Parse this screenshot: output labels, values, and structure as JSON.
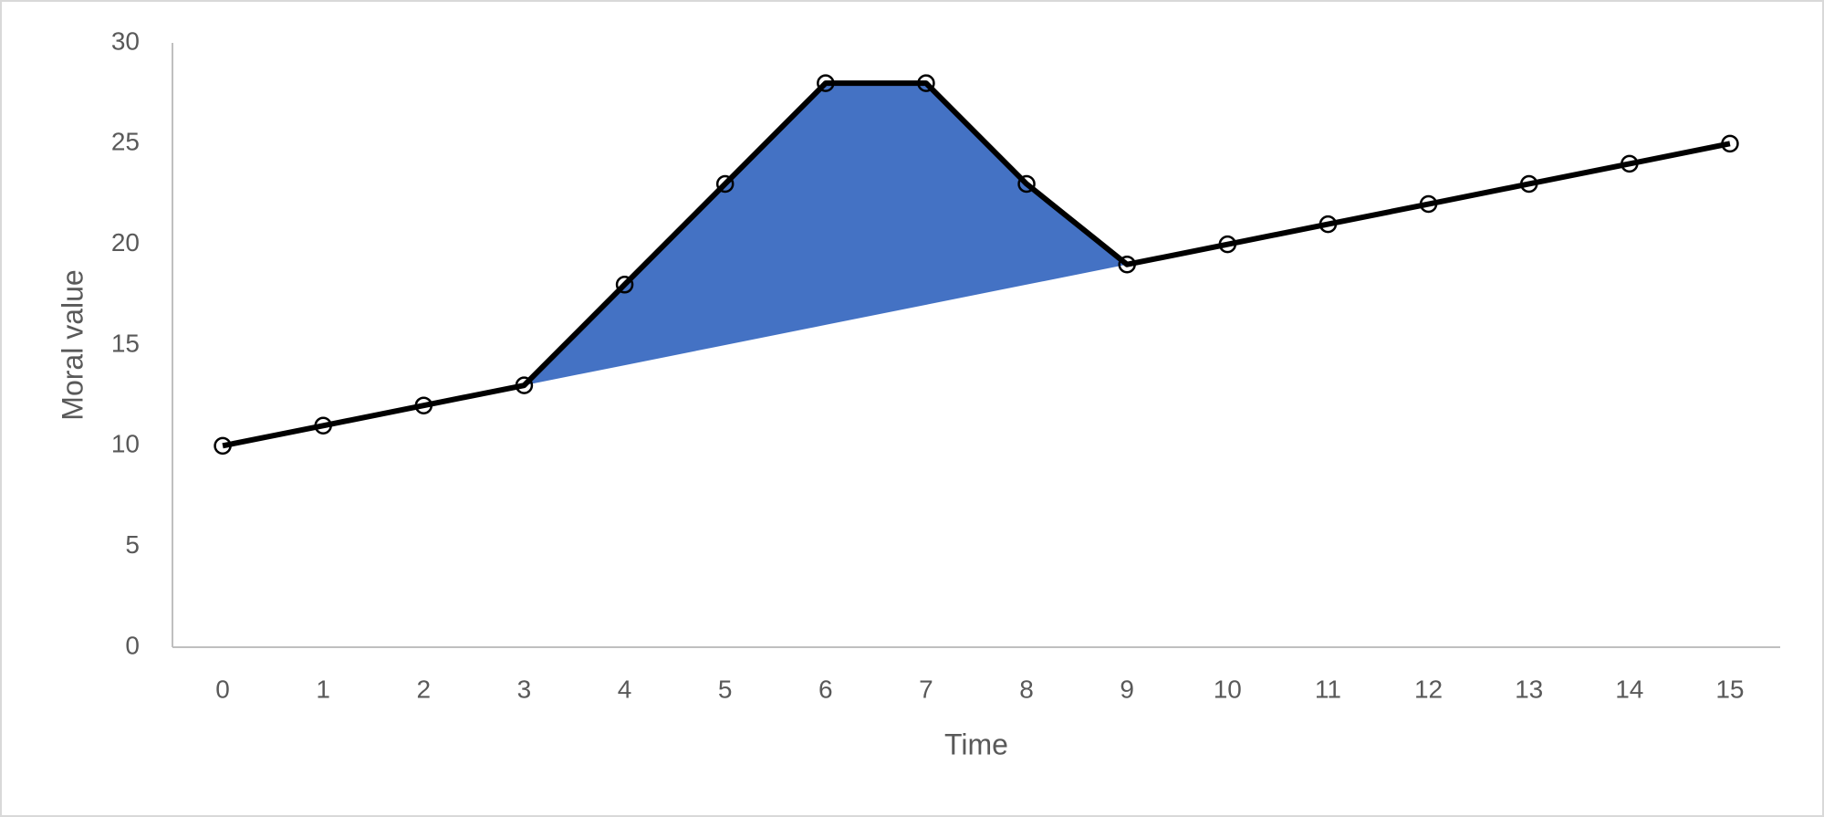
{
  "chart_data": {
    "type": "line",
    "x_label": "Time",
    "y_label": "Moral value",
    "categories": [
      "0",
      "1",
      "2",
      "3",
      "4",
      "5",
      "6",
      "7",
      "8",
      "9",
      "10",
      "11",
      "12",
      "13",
      "14",
      "15"
    ],
    "values": [
      10,
      11,
      12,
      13,
      18,
      23,
      28,
      28,
      23,
      19,
      20,
      21,
      22,
      23,
      24,
      25
    ],
    "color": "#000000",
    "band": {
      "color": "#4472c4",
      "lower": [
        null,
        null,
        null,
        13,
        14,
        15,
        16,
        17,
        18,
        19,
        null,
        null,
        null,
        null,
        null,
        null
      ]
    },
    "ylim": [
      0,
      30
    ],
    "yticks": [
      0,
      5,
      10,
      15,
      20,
      25,
      30
    ],
    "grid": false
  }
}
